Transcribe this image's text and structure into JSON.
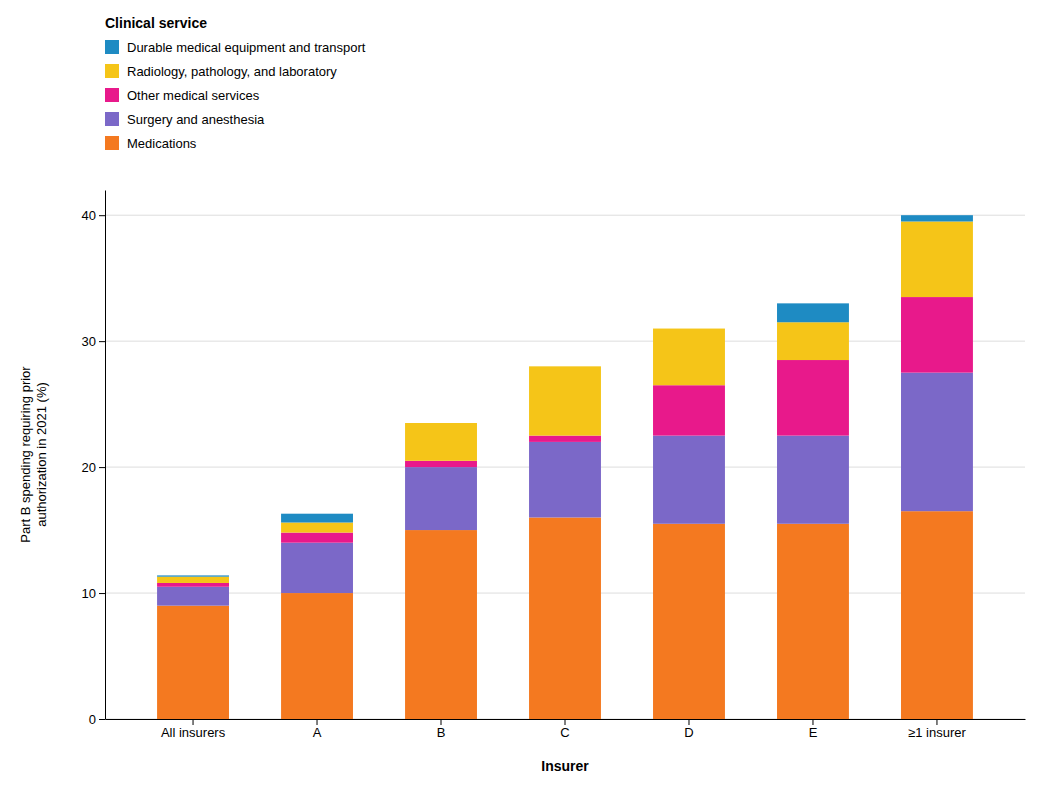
{
  "chart_data": {
    "type": "bar",
    "stacked": true,
    "categories": [
      "All insurers",
      "A",
      "B",
      "C",
      "D",
      "E",
      "≥1 insurer"
    ],
    "series": [
      {
        "name": "Medications",
        "color": "#F47920",
        "values": [
          9.0,
          10.0,
          15.0,
          16.0,
          15.5,
          15.5,
          16.5
        ]
      },
      {
        "name": "Surgery and anesthesia",
        "color": "#7B68C8",
        "values": [
          1.5,
          4.0,
          5.0,
          6.0,
          7.0,
          7.0,
          11.0
        ]
      },
      {
        "name": "Other medical services",
        "color": "#E8198B",
        "values": [
          0.3,
          0.8,
          0.5,
          0.5,
          4.0,
          6.0,
          6.0
        ]
      },
      {
        "name": "Radiology, pathology, and laboratory",
        "color": "#F5C518",
        "values": [
          0.5,
          0.8,
          3.0,
          5.5,
          4.5,
          3.0,
          6.0
        ]
      },
      {
        "name": "Durable medical equipment and transport",
        "color": "#1E8BC3",
        "values": [
          0.1,
          0.7,
          0.0,
          0.0,
          0.0,
          1.5,
          0.5
        ]
      }
    ],
    "ylabel": "Part B spending requiring prior\nauthorization in 2021 (%)",
    "xlabel": "Insurer",
    "legend_title": "Clinical service",
    "legend": "upper left",
    "ylim": [
      0,
      42
    ],
    "yticks": [
      0,
      10,
      20,
      30,
      40
    ],
    "grid": true
  }
}
